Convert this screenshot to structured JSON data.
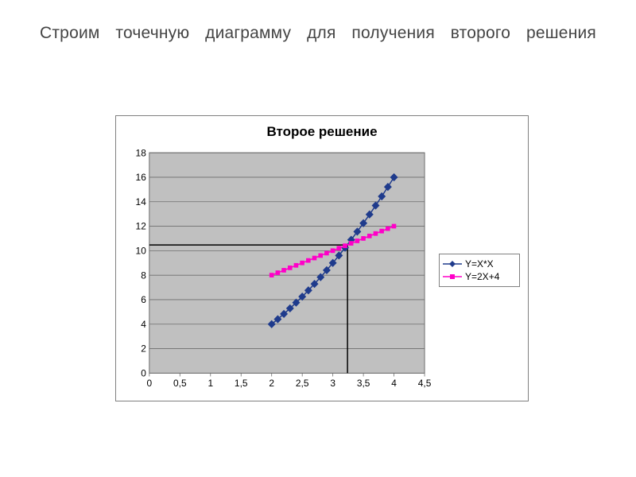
{
  "heading": "Строим точечную диаграмму для получения второго решения",
  "chart": {
    "type": "scatter",
    "title": "Второе решение",
    "background_color": "#ffffff",
    "plot_background_color": "#c0c0c0",
    "grid_color": "#6d6d6d",
    "border_color": "#808080",
    "axis_text_color": "#000000",
    "title_fontsize": 17,
    "label_fontsize": 12,
    "xlim": [
      0,
      4.5
    ],
    "ylim": [
      0,
      18
    ],
    "xticks": [
      0,
      0.5,
      1,
      1.5,
      2,
      2.5,
      3,
      3.5,
      4,
      4.5
    ],
    "xtick_labels": [
      "0",
      "0,5",
      "1",
      "1,5",
      "2",
      "2,5",
      "3",
      "3,5",
      "4",
      "4,5"
    ],
    "yticks": [
      0,
      2,
      4,
      6,
      8,
      10,
      12,
      14,
      16,
      18
    ],
    "ytick_labels": [
      "0",
      "2",
      "4",
      "6",
      "8",
      "10",
      "12",
      "14",
      "16",
      "18"
    ],
    "series": [
      {
        "name": "Y=X*X",
        "color": "#1f3b8c",
        "marker": "diamond",
        "marker_size": 5,
        "line": true,
        "line_width": 1.5,
        "x": [
          2,
          2.1,
          2.2,
          2.3,
          2.4,
          2.5,
          2.6,
          2.7,
          2.8,
          2.9,
          3.0,
          3.1,
          3.2,
          3.3,
          3.4,
          3.5,
          3.6,
          3.7,
          3.8,
          3.9,
          4.0
        ],
        "y": [
          4,
          4.41,
          4.84,
          5.29,
          5.76,
          6.25,
          6.76,
          7.29,
          7.84,
          8.41,
          9.0,
          9.61,
          10.24,
          10.89,
          11.56,
          12.25,
          12.96,
          13.69,
          14.44,
          15.21,
          16.0
        ]
      },
      {
        "name": "Y=2X+4",
        "color": "#ff00c8",
        "marker": "square",
        "marker_size": 4,
        "line": true,
        "line_width": 1.5,
        "x": [
          2,
          2.1,
          2.2,
          2.3,
          2.4,
          2.5,
          2.6,
          2.7,
          2.8,
          2.9,
          3.0,
          3.1,
          3.2,
          3.3,
          3.4,
          3.5,
          3.6,
          3.7,
          3.8,
          3.9,
          4.0
        ],
        "y": [
          8,
          8.2,
          8.4,
          8.6,
          8.8,
          9.0,
          9.2,
          9.4,
          9.6,
          9.8,
          10.0,
          10.2,
          10.4,
          10.6,
          10.8,
          11.0,
          11.2,
          11.4,
          11.6,
          11.8,
          12.0
        ]
      }
    ],
    "reference_lines": {
      "stroke": "#000000",
      "width": 1.5,
      "x": 3.24,
      "y": 10.47
    }
  }
}
